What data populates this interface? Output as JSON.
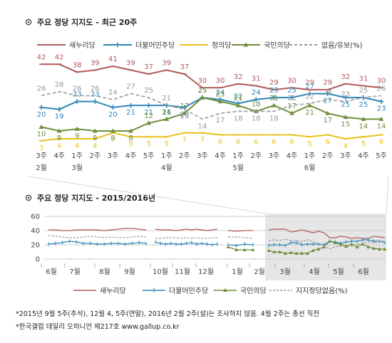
{
  "colors": {
    "saenuri": "#b05a5a",
    "minjoo": "#2f86b8",
    "justice": "#e8c21c",
    "people": "#6f8f3a",
    "none": "#999999"
  },
  "top_title": "주요 정당 지지도 - 최근 20주",
  "bottom_title": "주요 정당 지지도 - 2015/2016년",
  "footnotes": [
    "*2015년 9월 5주(추석), 12월 4, 5주(연말), 2016년 2월 2주(설)는 조사하지 않음. 4월 2주는 총선 직전",
    "*한국갤럽 데일리 오피니언 제217호 www.gallup.co.kr"
  ],
  "chart_data": [
    {
      "type": "line",
      "title": "주요 정당 지지도 - 최근 20주",
      "x_week_labels": [
        "3주",
        "4주",
        "1주",
        "2주",
        "3주",
        "4주",
        "5주",
        "1주",
        "2주",
        "3주",
        "4주",
        "1주",
        "2주",
        "3주",
        "4주",
        "1주",
        "2주",
        "3주",
        "4주",
        "5주"
      ],
      "x_month_labels": [
        {
          "index": 0,
          "label": "2월"
        },
        {
          "index": 2,
          "label": "3월"
        },
        {
          "index": 7,
          "label": "4월"
        },
        {
          "index": 11,
          "label": "5월"
        },
        {
          "index": 15,
          "label": "6월"
        }
      ],
      "series": [
        {
          "name": "새누리당",
          "key": "saenuri",
          "style": "solid",
          "values": [
            42,
            42,
            38,
            39,
            41,
            39,
            37,
            39,
            37,
            30,
            30,
            32,
            31,
            29,
            30,
            29,
            29,
            32,
            31,
            30
          ]
        },
        {
          "name": "더불어민주당",
          "key": "minjoo",
          "style": "solid",
          "values": [
            20,
            19,
            23,
            23,
            20,
            21,
            21,
            21,
            20,
            25,
            24,
            22,
            24,
            25,
            25,
            27,
            27,
            25,
            25,
            23
          ]
        },
        {
          "name": "정의당",
          "key": "justice",
          "style": "solid",
          "values": [
            3,
            4,
            4,
            4,
            7,
            5,
            5,
            5,
            7,
            7,
            6,
            6,
            6,
            6,
            6,
            5,
            6,
            4,
            5,
            6
          ]
        },
        {
          "name": "국민의당",
          "key": "people",
          "style": "solid",
          "values": [
            10,
            8,
            9,
            8,
            8,
            8,
            12,
            14,
            17,
            25,
            23,
            21,
            18,
            21,
            17,
            21,
            17,
            15,
            14,
            14
          ]
        },
        {
          "name": "없음/유보(%)",
          "key": "none",
          "style": "dashed",
          "values": [
            26,
            28,
            26,
            26,
            24,
            27,
            25,
            21,
            19,
            14,
            17,
            18,
            18,
            18,
            21,
            22,
            24,
            23,
            25,
            26
          ]
        }
      ],
      "ylim": [
        0,
        45
      ]
    },
    {
      "type": "line",
      "title": "주요 정당 지지도 - 2015/2016년",
      "yticks": [
        0,
        20,
        40,
        60
      ],
      "ylim": [
        0,
        60
      ],
      "x_month_labels": [
        "6월",
        "7월",
        "8월",
        "9월",
        "10월",
        "11월",
        "12월",
        "1월",
        "2월",
        "3월",
        "4월",
        "5월",
        "6월"
      ],
      "highlight_range_label": "최근 20주",
      "series": [
        {
          "name": "새누리당",
          "key": "saenuri",
          "style": "solid",
          "segments": [
            [
              41,
              41,
              40,
              40,
              41,
              41,
              41,
              41,
              40,
              41,
              42,
              43,
              43,
              42,
              41
            ],
            [
              42,
              41,
              41,
              41,
              40,
              41,
              42,
              41,
              42,
              41,
              40,
              41,
              42
            ],
            [
              40,
              39,
              40,
              40
            ],
            [
              41,
              42,
              42,
              42,
              38,
              39,
              41,
              39,
              37,
              39,
              37,
              30,
              30,
              32,
              31,
              29,
              30,
              29,
              29,
              32,
              31,
              30
            ]
          ]
        },
        {
          "name": "더불어민주당",
          "key": "minjoo",
          "style": "solid",
          "segments": [
            [
              21,
              22,
              23,
              25,
              24,
              22,
              22,
              21,
              21,
              22,
              22,
              21,
              22,
              23,
              22
            ],
            [
              24,
              22,
              21,
              22,
              21,
              21,
              22,
              23,
              21,
              22,
              21,
              20,
              21
            ],
            [
              20,
              19,
              21,
              20
            ],
            [
              19,
              20,
              20,
              19,
              23,
              23,
              20,
              21,
              21,
              21,
              20,
              25,
              24,
              22,
              24,
              25,
              25,
              27,
              27,
              25,
              25,
              23
            ]
          ]
        },
        {
          "name": "국민의당",
          "key": "people",
          "style": "solid",
          "segments": [
            [],
            [],
            [
              17,
              13,
              13,
              13
            ],
            [
              12,
              10,
              10,
              8,
              9,
              8,
              8,
              8,
              12,
              14,
              17,
              25,
              23,
              21,
              18,
              21,
              17,
              21,
              17,
              15,
              14,
              14
            ]
          ]
        },
        {
          "name": "지지정당없음(%)",
          "key": "none",
          "style": "dashed",
          "segments": [
            [
              33,
              32,
              31,
              30,
              30,
              31,
              32,
              31,
              30,
              31,
              30,
              30,
              31,
              32,
              31
            ],
            [
              29,
              29,
              30,
              30,
              30,
              29,
              30,
              29,
              30,
              29,
              29,
              30,
              30
            ],
            [
              31,
              31,
              30,
              29
            ],
            [
              26,
              27,
              26,
              28,
              26,
              26,
              24,
              27,
              25,
              21,
              19,
              14,
              17,
              18,
              18,
              18,
              21,
              22,
              24,
              23,
              25,
              26
            ]
          ]
        }
      ]
    }
  ]
}
